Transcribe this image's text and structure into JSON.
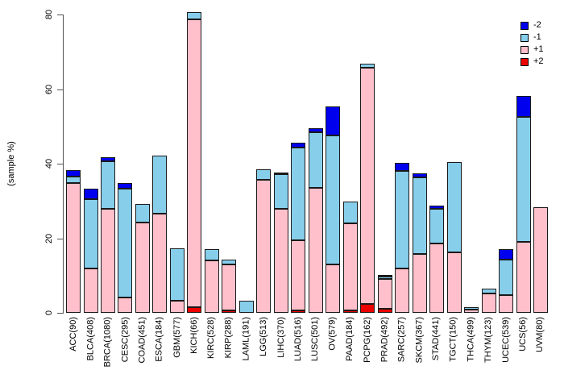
{
  "chart_data": {
    "type": "bar",
    "subtype": "stacked-vertical",
    "title": "",
    "xlabel": "",
    "ylabel": "(sample %)",
    "ylim": [
      0,
      80
    ],
    "yticks": [
      0,
      20,
      40,
      60,
      80
    ],
    "grid": false,
    "legend_position": "top-right",
    "stack_order_bottom_to_top": [
      "+2",
      "+1",
      "-1",
      "-2"
    ],
    "legend": [
      {
        "label": "-2",
        "color": "#0000EE"
      },
      {
        "label": "-1",
        "color": "#87CEEB"
      },
      {
        "label": "+1",
        "color": "#FFC0CB"
      },
      {
        "label": "+2",
        "color": "#EE0000"
      }
    ],
    "categories": [
      "ACC(90)",
      "BLCA(408)",
      "BRCA(1080)",
      "CESC(295)",
      "COAD(451)",
      "ESCA(184)",
      "GBM(577)",
      "KICH(66)",
      "KIRC(528)",
      "KIRP(288)",
      "LAML(191)",
      "LGG(513)",
      "LIHC(370)",
      "LUAD(516)",
      "LUSC(501)",
      "OV(579)",
      "PAAD(184)",
      "PCPG(162)",
      "PRAD(492)",
      "SARC(257)",
      "SKCM(367)",
      "STAD(441)",
      "TGCT(150)",
      "THCA(499)",
      "THYM(123)",
      "UCEC(539)",
      "UCS(56)",
      "UVM(80)"
    ],
    "series": [
      {
        "name": "-2",
        "color": "#0000EE",
        "values": [
          1.7,
          2.9,
          1.1,
          1.6,
          0,
          0,
          0,
          0,
          0,
          0,
          0,
          0,
          0.5,
          1.3,
          1.1,
          7.8,
          0,
          0,
          0.5,
          2.2,
          1.2,
          0.9,
          0,
          0,
          0,
          2.9,
          5.6,
          0
        ]
      },
      {
        "name": "-1",
        "color": "#87CEEB",
        "values": [
          1.7,
          18.4,
          12.8,
          29.1,
          5.0,
          15.5,
          14.1,
          1.9,
          3.0,
          1.3,
          3.2,
          3.0,
          9.4,
          25.0,
          14.8,
          34.7,
          5.9,
          1.1,
          0.6,
          26.1,
          20.4,
          9.2,
          24.2,
          0.6,
          1.3,
          9.5,
          33.4,
          0
        ]
      },
      {
        "name": "+1",
        "color": "#FFC0CB",
        "values": [
          34.9,
          12.0,
          27.9,
          4.1,
          24.3,
          26.6,
          3.3,
          77.2,
          14.0,
          12.4,
          0,
          35.6,
          27.8,
          18.7,
          33.6,
          12.9,
          23.3,
          63.4,
          8.1,
          12.0,
          15.9,
          18.7,
          16.3,
          0.9,
          5.1,
          4.8,
          19.1,
          28.3
        ]
      },
      {
        "name": "+2",
        "color": "#EE0000",
        "values": [
          0,
          0,
          0,
          0,
          0,
          0,
          0,
          1.6,
          0,
          0.6,
          0,
          0,
          0,
          0.7,
          0,
          0,
          0.7,
          2.4,
          1.0,
          0,
          0,
          0,
          0,
          0,
          0,
          0,
          0,
          0
        ]
      }
    ]
  }
}
